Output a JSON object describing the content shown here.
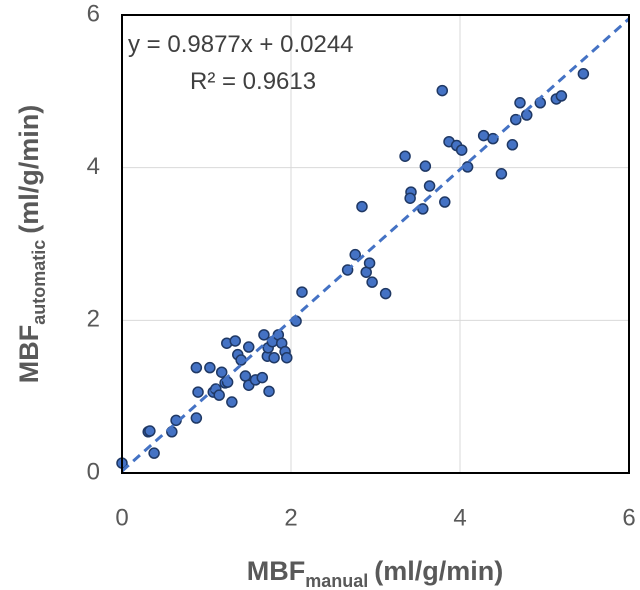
{
  "chart_data": {
    "type": "scatter",
    "x": [
      0,
      0.31,
      0.33,
      0.38,
      0.59,
      0.64,
      0.88,
      0.88,
      0.9,
      1.04,
      1.08,
      1.11,
      1.15,
      1.18,
      1.22,
      1.25,
      1.24,
      1.3,
      1.34,
      1.37,
      1.41,
      1.46,
      1.5,
      1.5,
      1.58,
      1.66,
      1.68,
      1.72,
      1.73,
      1.74,
      1.78,
      1.8,
      1.85,
      1.89,
      1.93,
      1.95,
      2.06,
      2.13,
      2.67,
      2.76,
      2.84,
      2.89,
      2.93,
      2.96,
      3.12,
      3.35,
      3.42,
      3.41,
      3.56,
      3.59,
      3.64,
      3.79,
      3.82,
      3.87,
      3.96,
      4.02,
      4.09,
      4.28,
      4.39,
      4.49,
      4.62,
      4.66,
      4.71,
      4.79,
      4.95,
      5.14,
      5.2,
      5.46
    ],
    "series": [
      {
        "color": "#4472c4",
        "values": [
          0.13,
          0.54,
          0.55,
          0.26,
          0.54,
          0.69,
          0.72,
          1.38,
          1.06,
          1.38,
          1.06,
          1.1,
          1.02,
          1.32,
          1.18,
          1.19,
          1.7,
          0.93,
          1.73,
          1.55,
          1.48,
          1.27,
          1.15,
          1.65,
          1.22,
          1.25,
          1.81,
          1.53,
          1.64,
          1.07,
          1.72,
          1.51,
          1.81,
          1.7,
          1.59,
          1.51,
          1.99,
          2.37,
          2.66,
          2.86,
          3.49,
          2.63,
          2.75,
          2.5,
          2.35,
          4.15,
          3.68,
          3.6,
          3.46,
          4.02,
          3.76,
          5.01,
          3.55,
          4.34,
          4.29,
          4.23,
          4.01,
          4.42,
          4.38,
          3.92,
          4.3,
          4.63,
          4.85,
          4.69,
          4.85,
          4.9,
          4.94,
          5.23
        ]
      }
    ],
    "trendline": {
      "slope": 0.9877,
      "intercept": 0.0244,
      "color": "#4472c4"
    },
    "annotations": [
      "y = 0.9877x + 0.0244",
      "R² = 0.9613"
    ],
    "xlabel": {
      "main": "MBF",
      "sub": "manual",
      "unit": "(ml/g/min)"
    },
    "ylabel": {
      "main": "MBF",
      "sub": "automatic",
      "unit": "(ml/g/min)"
    },
    "xlim": [
      0,
      6
    ],
    "ylim": [
      0,
      6
    ],
    "xticks": [
      0,
      2,
      4,
      6
    ],
    "yticks": [
      0,
      2,
      4,
      6
    ],
    "grid": true
  }
}
